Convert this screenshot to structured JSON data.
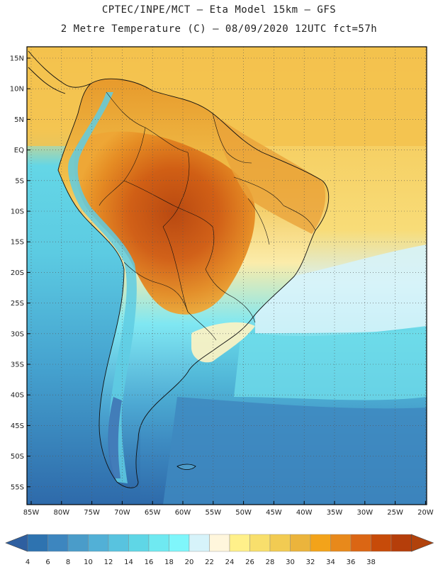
{
  "title_line1": "CPTEC/INPE/MCT –  Eta Model 15km – GFS",
  "title_line2": "2 Metre Temperature (C) – 08/09/2020 12UTC fct=57h",
  "lat_labels": [
    "15N",
    "10N",
    "5N",
    "EQ",
    "5S",
    "10S",
    "15S",
    "20S",
    "25S",
    "30S",
    "35S",
    "40S",
    "45S",
    "50S",
    "55S"
  ],
  "lon_labels": [
    "85W",
    "80W",
    "75W",
    "70W",
    "65W",
    "60W",
    "55W",
    "50W",
    "45W",
    "40W",
    "35W",
    "30W",
    "25W",
    "20W"
  ],
  "colorbar": {
    "labels": [
      "4",
      "6",
      "8",
      "10",
      "12",
      "14",
      "16",
      "18",
      "20",
      "22",
      "24",
      "26",
      "28",
      "30",
      "32",
      "34",
      "36",
      "38"
    ],
    "colors": [
      "#2e73b0",
      "#3d86bf",
      "#4a9cc9",
      "#52b0d6",
      "#58c3df",
      "#5fd6e6",
      "#6fe9f1",
      "#7ff6fb",
      "#d6f3fa",
      "#fff6dc",
      "#fff08a",
      "#f8df6c",
      "#f2cb52",
      "#ebb43c",
      "#f3a31a",
      "#e8891b",
      "#db6614",
      "#c74b09",
      "#b53e0a"
    ],
    "left_arrow_color": "#2e5fa0",
    "right_arrow_color": "#b1420c"
  }
}
